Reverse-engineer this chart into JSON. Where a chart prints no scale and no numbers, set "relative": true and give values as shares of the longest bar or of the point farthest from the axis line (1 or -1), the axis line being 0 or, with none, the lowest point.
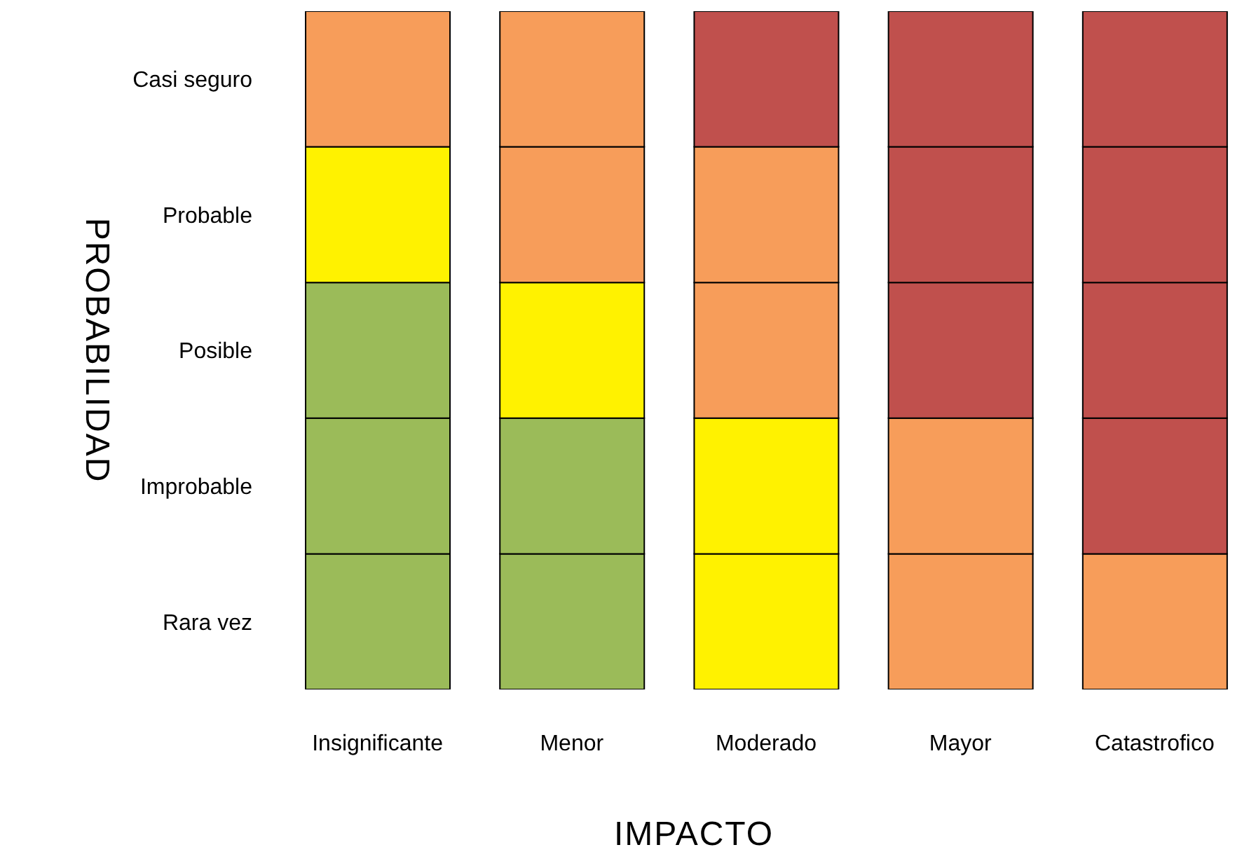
{
  "chart_data": {
    "type": "bar",
    "stacked": true,
    "relative": true,
    "xlabel": "IMPACTO",
    "ylabel": "PROBABILIDAD",
    "categories": [
      "Insignificante",
      "Menor",
      "Moderado",
      "Mayor",
      "Catastrofico"
    ],
    "series": [
      {
        "name": "Rara vez",
        "colors": [
          "#9bbb59",
          "#9bbb59",
          "#fff200",
          "#f79d5a",
          "#f79d5a"
        ],
        "values": [
          0.2,
          0.2,
          0.2,
          0.2,
          0.2
        ]
      },
      {
        "name": "Improbable",
        "colors": [
          "#9bbb59",
          "#9bbb59",
          "#fff200",
          "#f79d5a",
          "#c0504d"
        ],
        "values": [
          0.2,
          0.2,
          0.2,
          0.2,
          0.2
        ]
      },
      {
        "name": "Posible",
        "colors": [
          "#9bbb59",
          "#fff200",
          "#f79d5a",
          "#c0504d",
          "#c0504d"
        ],
        "values": [
          0.2,
          0.2,
          0.2,
          0.2,
          0.2
        ]
      },
      {
        "name": "Probable",
        "colors": [
          "#fff200",
          "#f79d5a",
          "#f79d5a",
          "#c0504d",
          "#c0504d"
        ],
        "values": [
          0.2,
          0.2,
          0.2,
          0.2,
          0.2
        ]
      },
      {
        "name": "Casi seguro",
        "colors": [
          "#f79d5a",
          "#f79d5a",
          "#c0504d",
          "#c0504d",
          "#c0504d"
        ],
        "values": [
          0.2,
          0.2,
          0.2,
          0.2,
          0.2
        ]
      }
    ]
  }
}
